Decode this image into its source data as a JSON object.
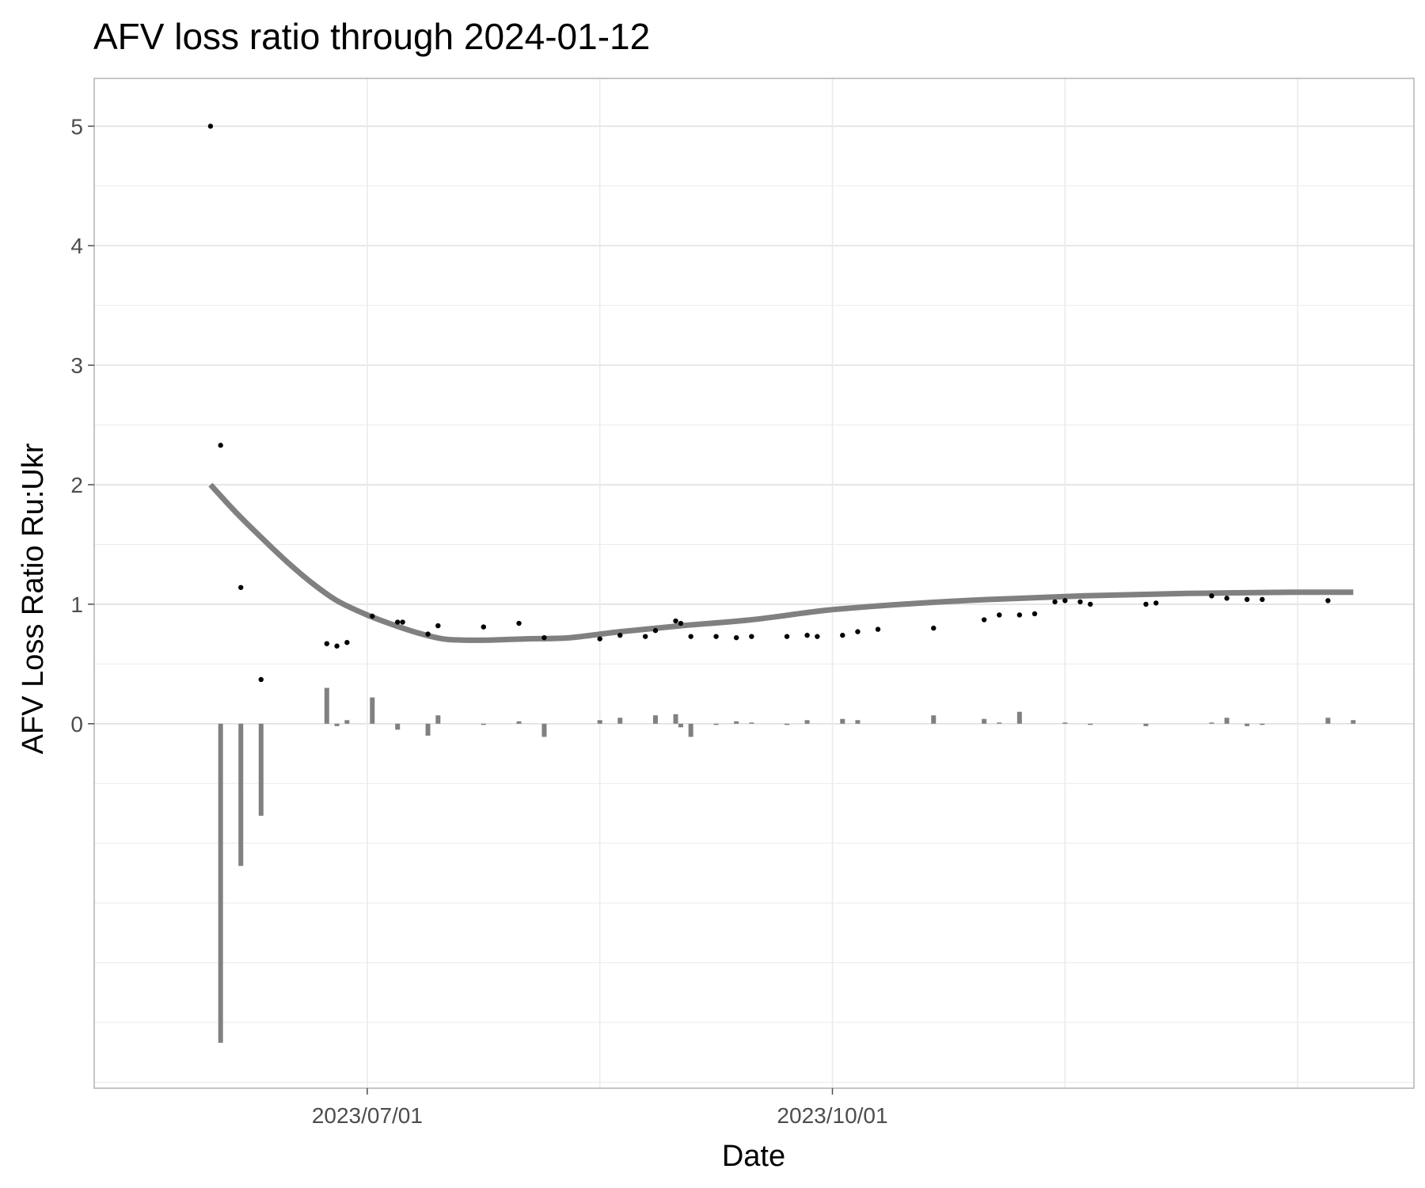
{
  "chart_data": {
    "type": "scatter",
    "title": "AFV loss ratio through 2024-01-12",
    "xlabel": "Date",
    "ylabel": "AFV Loss Ratio Ru:Ukr",
    "x_ticks": [
      "2023/07/01",
      "2023/10/01"
    ],
    "y_ticks": [
      0,
      1,
      2,
      3,
      4,
      5
    ],
    "xlim": [
      "2023-05-08",
      "2024-01-24"
    ],
    "ylim": [
      -3.05,
      5.4
    ],
    "grid": true,
    "colors": {
      "points": "#000000",
      "trend": "#808080",
      "bars": "#808080",
      "grid": "#ebebeb",
      "panel_border": "#b3b3b3"
    },
    "series": [
      {
        "kind": "points",
        "x": [
          "2023-05-31",
          "2023-06-02",
          "2023-06-06",
          "2023-06-10",
          "2023-06-23",
          "2023-06-25",
          "2023-06-27",
          "2023-07-02",
          "2023-07-07",
          "2023-07-08",
          "2023-07-13",
          "2023-07-15",
          "2023-07-24",
          "2023-07-31",
          "2023-08-05",
          "2023-08-16",
          "2023-08-20",
          "2023-08-25",
          "2023-08-27",
          "2023-08-31",
          "2023-09-01",
          "2023-09-03",
          "2023-09-08",
          "2023-09-12",
          "2023-09-15",
          "2023-09-22",
          "2023-09-26",
          "2023-09-28",
          "2023-10-03",
          "2023-10-06",
          "2023-10-10",
          "2023-10-21",
          "2023-10-31",
          "2023-11-03",
          "2023-11-07",
          "2023-11-10",
          "2023-11-14",
          "2023-11-16",
          "2023-11-19",
          "2023-11-21",
          "2023-12-02",
          "2023-12-04",
          "2023-12-15",
          "2023-12-18",
          "2023-12-22",
          "2023-12-25",
          "2024-01-07"
        ],
        "y": [
          5.0,
          2.33,
          1.14,
          0.37,
          0.67,
          0.65,
          0.68,
          0.9,
          0.85,
          0.85,
          0.75,
          0.82,
          0.81,
          0.84,
          0.72,
          0.71,
          0.74,
          0.73,
          0.78,
          0.86,
          0.84,
          0.73,
          0.73,
          0.72,
          0.73,
          0.73,
          0.74,
          0.73,
          0.74,
          0.77,
          0.79,
          0.8,
          0.87,
          0.91,
          0.91,
          0.92,
          1.02,
          1.03,
          1.02,
          1.0,
          1.0,
          1.01,
          1.07,
          1.05,
          1.04,
          1.04,
          1.03
        ]
      },
      {
        "kind": "bars",
        "x": [
          "2023-06-02",
          "2023-06-06",
          "2023-06-10",
          "2023-06-23",
          "2023-06-25",
          "2023-06-27",
          "2023-07-02",
          "2023-07-07",
          "2023-07-13",
          "2023-07-15",
          "2023-07-24",
          "2023-07-31",
          "2023-08-05",
          "2023-08-16",
          "2023-08-20",
          "2023-08-27",
          "2023-08-31",
          "2023-09-01",
          "2023-09-03",
          "2023-09-08",
          "2023-09-12",
          "2023-09-15",
          "2023-09-22",
          "2023-09-26",
          "2023-10-03",
          "2023-10-06",
          "2023-10-21",
          "2023-10-31",
          "2023-11-03",
          "2023-11-07",
          "2023-11-16",
          "2023-11-21",
          "2023-12-02",
          "2023-12-15",
          "2023-12-18",
          "2023-12-22",
          "2023-12-25",
          "2024-01-07",
          "2024-01-12"
        ],
        "y": [
          -2.67,
          -1.19,
          -0.77,
          0.3,
          -0.02,
          0.03,
          0.22,
          -0.05,
          -0.1,
          0.07,
          -0.01,
          0.02,
          -0.11,
          0.03,
          0.05,
          0.07,
          0.08,
          -0.03,
          -0.11,
          -0.01,
          0.02,
          0.01,
          -0.01,
          0.03,
          0.04,
          0.03,
          0.07,
          0.04,
          0.01,
          0.1,
          0.01,
          -0.01,
          -0.02,
          0.01,
          0.05,
          -0.02,
          -0.01,
          0.05,
          0.03
        ]
      },
      {
        "kind": "trend",
        "x": [
          "2023-05-31",
          "2023-06-05",
          "2023-06-10",
          "2023-06-15",
          "2023-06-20",
          "2023-06-25",
          "2023-07-01",
          "2023-07-06",
          "2023-07-11",
          "2023-07-16",
          "2023-07-20",
          "2023-07-25",
          "2023-08-01",
          "2023-08-10",
          "2023-08-20",
          "2023-09-01",
          "2023-09-15",
          "2023-09-30",
          "2023-10-15",
          "2023-11-01",
          "2023-11-20",
          "2023-12-10",
          "2023-12-31",
          "2024-01-12"
        ],
        "y": [
          2.0,
          1.77,
          1.56,
          1.36,
          1.18,
          1.03,
          0.91,
          0.83,
          0.76,
          0.71,
          0.7,
          0.7,
          0.71,
          0.72,
          0.77,
          0.82,
          0.87,
          0.95,
          1.0,
          1.04,
          1.07,
          1.09,
          1.1,
          1.1
        ]
      }
    ]
  }
}
